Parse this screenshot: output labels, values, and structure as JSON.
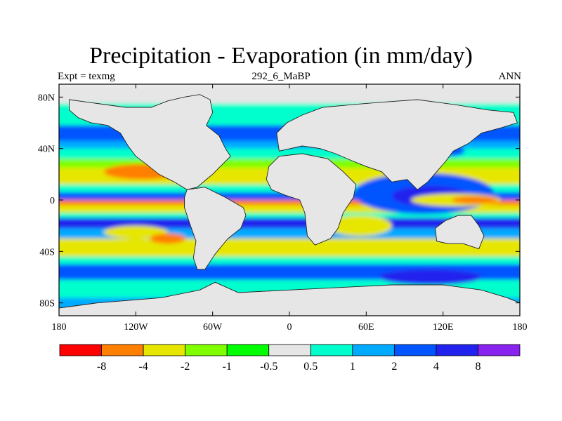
{
  "title": "Precipitation - Evaporation (in mm/day)",
  "left_label": "Expt = texmg",
  "center_label": "292_6_MaBP",
  "right_label": "ANN",
  "x_ticks": [
    {
      "value": -180,
      "label": "180"
    },
    {
      "value": -120,
      "label": "120W"
    },
    {
      "value": -60,
      "label": "60W"
    },
    {
      "value": 0,
      "label": "0"
    },
    {
      "value": 60,
      "label": "60E"
    },
    {
      "value": 120,
      "label": "120E"
    },
    {
      "value": 180,
      "label": "180"
    }
  ],
  "y_ticks": [
    {
      "value": 80,
      "label": "80N"
    },
    {
      "value": 40,
      "label": "40N"
    },
    {
      "value": 0,
      "label": "0"
    },
    {
      "value": -40,
      "label": "40S"
    },
    {
      "value": -80,
      "label": "80S"
    }
  ],
  "lon_range": [
    -180,
    180
  ],
  "lat_range": [
    -90,
    90
  ],
  "colorbar": {
    "colors": [
      "#ff0000",
      "#ff7f00",
      "#e6e600",
      "#80ff00",
      "#00ff00",
      "#e6e6e6",
      "#00ffcc",
      "#00aaff",
      "#0055ff",
      "#2222ee",
      "#8822ee"
    ],
    "labels": [
      "-8",
      "-4",
      "-2",
      "-1",
      "-0.5",
      "0.5",
      "1",
      "2",
      "4",
      "8"
    ]
  },
  "bands": [
    {
      "lat_min": 75,
      "lat_max": 90,
      "color": "#e6e6e6"
    },
    {
      "lat_min": 68,
      "lat_max": 75,
      "color": "#00ffcc"
    },
    {
      "lat_min": 58,
      "lat_max": 68,
      "color": "#00ffcc"
    },
    {
      "lat_min": 46,
      "lat_max": 58,
      "color": "#0055ff"
    },
    {
      "lat_min": 40,
      "lat_max": 46,
      "color": "#00aaff"
    },
    {
      "lat_min": 32,
      "lat_max": 40,
      "color": "#00ffcc"
    },
    {
      "lat_min": 25,
      "lat_max": 32,
      "color": "#80ff00"
    },
    {
      "lat_min": 12,
      "lat_max": 25,
      "color": "#e6e600"
    },
    {
      "lat_min": 6,
      "lat_max": 12,
      "color": "#00ffcc"
    },
    {
      "lat_min": 0,
      "lat_max": 6,
      "color": "#0055ff"
    },
    {
      "lat_min": -4,
      "lat_max": 0,
      "color": "#ff7f00"
    },
    {
      "lat_min": -10,
      "lat_max": -4,
      "color": "#e6e600"
    },
    {
      "lat_min": -14,
      "lat_max": -10,
      "color": "#00ffcc"
    },
    {
      "lat_min": -22,
      "lat_max": -14,
      "color": "#2222ee"
    },
    {
      "lat_min": -30,
      "lat_max": -22,
      "color": "#00aaff"
    },
    {
      "lat_min": -44,
      "lat_max": -30,
      "color": "#e6e600"
    },
    {
      "lat_min": -50,
      "lat_max": -44,
      "color": "#00ffcc"
    },
    {
      "lat_min": -62,
      "lat_max": -50,
      "color": "#0055ff"
    },
    {
      "lat_min": -76,
      "lat_max": -62,
      "color": "#00ffcc"
    },
    {
      "lat_min": -90,
      "lat_max": -76,
      "color": "#00aaff"
    }
  ],
  "blobs": [
    {
      "lon": -115,
      "lat": 22,
      "rlon": 30,
      "rlat": 6,
      "color": "#ff7f00"
    },
    {
      "lon": -120,
      "lat": -25,
      "rlon": 25,
      "rlat": 5,
      "color": "#e6e600"
    },
    {
      "lon": -95,
      "lat": -30,
      "rlon": 14,
      "rlat": 4,
      "color": "#ff7f00"
    },
    {
      "lon": 105,
      "lat": 5,
      "rlon": 55,
      "rlat": 16,
      "color": "#0055ff"
    },
    {
      "lon": 110,
      "lat": 3,
      "rlon": 30,
      "rlat": 8,
      "color": "#2222ee"
    },
    {
      "lon": 130,
      "lat": 0,
      "rlon": 35,
      "rlat": 5,
      "color": "#e6e600"
    },
    {
      "lon": 145,
      "lat": 0,
      "rlon": 18,
      "rlat": 3,
      "color": "#ff7f00"
    },
    {
      "lon": 55,
      "lat": -20,
      "rlon": 25,
      "rlat": 8,
      "color": "#e6e600"
    },
    {
      "lon": 110,
      "lat": -60,
      "rlon": 40,
      "rlat": 6,
      "color": "#2222ee"
    },
    {
      "lon": 60,
      "lat": 58,
      "rlon": 12,
      "rlat": 10,
      "color": "#0055ff"
    },
    {
      "lon": 125,
      "lat": 38,
      "rlon": 12,
      "rlat": 4,
      "color": "#0055ff"
    }
  ],
  "lands": [
    {
      "name": "north-america",
      "color": "#e6e6e6",
      "points": [
        [
          -172,
          78
        ],
        [
          -150,
          75
        ],
        [
          -128,
          72
        ],
        [
          -108,
          72
        ],
        [
          -95,
          77
        ],
        [
          -82,
          80
        ],
        [
          -70,
          82
        ],
        [
          -62,
          78
        ],
        [
          -60,
          68
        ],
        [
          -65,
          58
        ],
        [
          -55,
          50
        ],
        [
          -50,
          40
        ],
        [
          -46,
          34
        ],
        [
          -52,
          28
        ],
        [
          -60,
          20
        ],
        [
          -66,
          15
        ],
        [
          -72,
          10
        ],
        [
          -80,
          8
        ],
        [
          -90,
          14
        ],
        [
          -102,
          20
        ],
        [
          -112,
          28
        ],
        [
          -120,
          34
        ],
        [
          -126,
          42
        ],
        [
          -132,
          52
        ],
        [
          -142,
          58
        ],
        [
          -155,
          60
        ],
        [
          -165,
          64
        ],
        [
          -172,
          70
        ]
      ]
    },
    {
      "name": "south-america",
      "color": "#e6e6e6",
      "points": [
        [
          -80,
          8
        ],
        [
          -66,
          10
        ],
        [
          -50,
          2
        ],
        [
          -36,
          -6
        ],
        [
          -34,
          -12
        ],
        [
          -38,
          -22
        ],
        [
          -48,
          -30
        ],
        [
          -58,
          -42
        ],
        [
          -66,
          -54
        ],
        [
          -72,
          -54
        ],
        [
          -75,
          -45
        ],
        [
          -73,
          -32
        ],
        [
          -78,
          -18
        ],
        [
          -82,
          -6
        ],
        [
          -82,
          2
        ]
      ]
    },
    {
      "name": "africa",
      "color": "#e6e6e6",
      "points": [
        [
          -16,
          26
        ],
        [
          -8,
          34
        ],
        [
          10,
          36
        ],
        [
          30,
          32
        ],
        [
          42,
          22
        ],
        [
          52,
          12
        ],
        [
          50,
          2
        ],
        [
          42,
          -10
        ],
        [
          38,
          -22
        ],
        [
          32,
          -30
        ],
        [
          20,
          -35
        ],
        [
          14,
          -28
        ],
        [
          12,
          -10
        ],
        [
          8,
          0
        ],
        [
          -4,
          4
        ],
        [
          -14,
          8
        ],
        [
          -18,
          16
        ]
      ]
    },
    {
      "name": "eurasia",
      "color": "#e6e6e6",
      "points": [
        [
          -8,
          38
        ],
        [
          -10,
          52
        ],
        [
          -2,
          60
        ],
        [
          10,
          66
        ],
        [
          26,
          72
        ],
        [
          48,
          74
        ],
        [
          72,
          76
        ],
        [
          100,
          78
        ],
        [
          130,
          74
        ],
        [
          155,
          70
        ],
        [
          175,
          68
        ],
        [
          178,
          60
        ],
        [
          165,
          56
        ],
        [
          150,
          52
        ],
        [
          140,
          44
        ],
        [
          128,
          38
        ],
        [
          122,
          30
        ],
        [
          115,
          22
        ],
        [
          108,
          14
        ],
        [
          100,
          8
        ],
        [
          92,
          16
        ],
        [
          80,
          14
        ],
        [
          72,
          22
        ],
        [
          60,
          26
        ],
        [
          50,
          30
        ],
        [
          36,
          36
        ],
        [
          24,
          40
        ],
        [
          10,
          42
        ]
      ]
    },
    {
      "name": "australia",
      "color": "#e6e6e6",
      "points": [
        [
          114,
          -22
        ],
        [
          122,
          -16
        ],
        [
          132,
          -12
        ],
        [
          142,
          -12
        ],
        [
          148,
          -20
        ],
        [
          152,
          -28
        ],
        [
          148,
          -38
        ],
        [
          136,
          -34
        ],
        [
          124,
          -34
        ],
        [
          115,
          -32
        ]
      ]
    },
    {
      "name": "antarctica",
      "color": "#e6e6e6",
      "points": [
        [
          -180,
          -84
        ],
        [
          -150,
          -80
        ],
        [
          -100,
          -76
        ],
        [
          -70,
          -70
        ],
        [
          -58,
          -64
        ],
        [
          -40,
          -72
        ],
        [
          0,
          -70
        ],
        [
          40,
          -68
        ],
        [
          80,
          -66
        ],
        [
          120,
          -66
        ],
        [
          150,
          -70
        ],
        [
          170,
          -76
        ],
        [
          180,
          -80
        ],
        [
          180,
          -90
        ],
        [
          -180,
          -90
        ]
      ]
    }
  ]
}
